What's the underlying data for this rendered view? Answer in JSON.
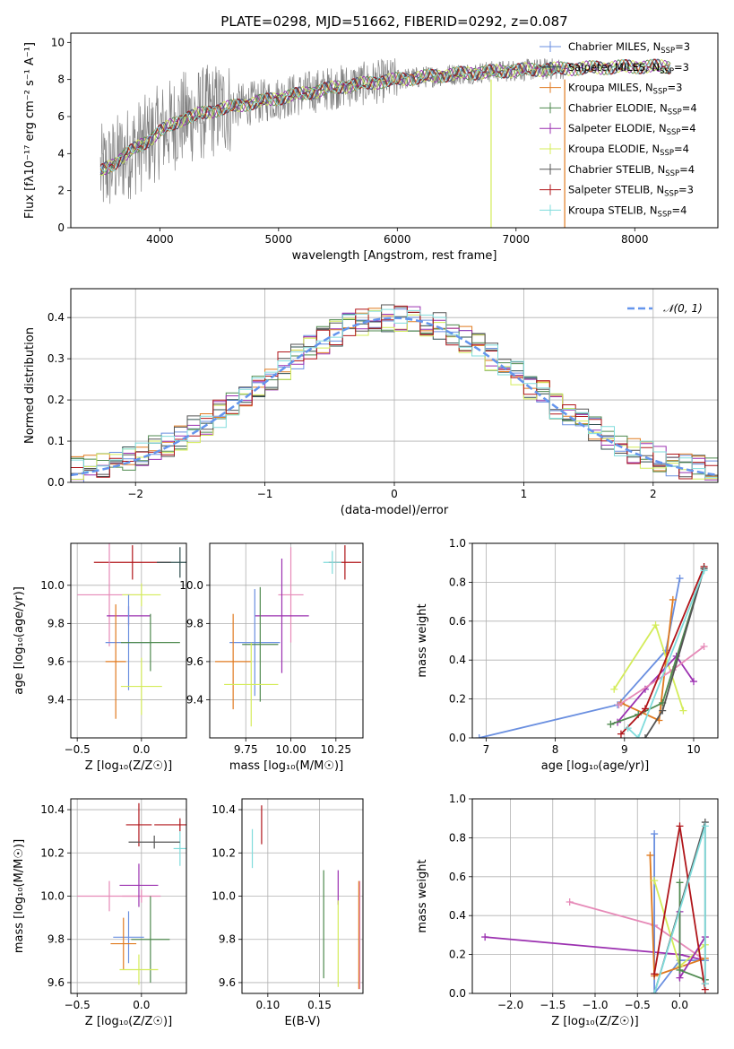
{
  "figure_title": "PLATE=0298, MJD=51662, FIBERID=0292, z=0.087",
  "colors": {
    "Chabrier MILES": "#6a8fe0",
    "Salpeter MILES": "#2f4f4f",
    "Kroupa MILES": "#e07a1f",
    "Chabrier ELODIE": "#4f8a4f",
    "Salpeter ELODIE": "#9b30b0",
    "Kroupa ELODIE": "#d4ec5a",
    "Chabrier STELIB": "#555555",
    "Salpeter STELIB": "#b0151a",
    "Kroupa STELIB": "#80dcdc",
    "Pink": "#e68ab8",
    "Data": "#808080",
    "Gauss": "#6495ed"
  },
  "chart_data": [
    {
      "id": "spectrum",
      "type": "line",
      "title": "PLATE=0298, MJD=51662, FIBERID=0292, z=0.087",
      "xlabel": "wavelength [Angstrom, rest frame]",
      "ylabel": "Flux [fλ10⁻¹⁷ erg cm⁻² s⁻¹ A⁻¹]",
      "xlim": [
        3250,
        8700
      ],
      "ylim": [
        0,
        10.5
      ],
      "xticks": [
        4000,
        5000,
        6000,
        7000,
        8000
      ],
      "yticks": [
        0,
        2,
        4,
        6,
        8,
        10
      ],
      "grid": false,
      "legend_position": "right",
      "legend": [
        {
          "label": "Chabrier MILES, N_SSP=3",
          "text": "Chabrier MILES, N",
          "sub": "SSP",
          "tail": "=3",
          "color_key": "Chabrier MILES"
        },
        {
          "label": "Salpeter MILES, N_SSP=3",
          "text": "Salpeter MILES, N",
          "sub": "SSP",
          "tail": "=3",
          "color_key": "Salpeter MILES"
        },
        {
          "label": "Kroupa MILES, N_SSP=3",
          "text": "Kroupa MILES, N",
          "sub": "SSP",
          "tail": "=3",
          "color_key": "Kroupa MILES"
        },
        {
          "label": "Chabrier ELODIE, N_SSP=4",
          "text": "Chabrier ELODIE, N",
          "sub": "SSP",
          "tail": "=4",
          "color_key": "Chabrier ELODIE"
        },
        {
          "label": "Salpeter ELODIE, N_SSP=4",
          "text": "Salpeter ELODIE, N",
          "sub": "SSP",
          "tail": "=4",
          "color_key": "Salpeter ELODIE"
        },
        {
          "label": "Kroupa ELODIE, N_SSP=4",
          "text": "Kroupa ELODIE, N",
          "sub": "SSP",
          "tail": "=4",
          "color_key": "Kroupa ELODIE"
        },
        {
          "label": "Chabrier STELIB, N_SSP=4",
          "text": "Chabrier STELIB, N",
          "sub": "SSP",
          "tail": "=4",
          "color_key": "Chabrier STELIB"
        },
        {
          "label": "Salpeter STELIB, N_SSP=3",
          "text": "Salpeter STELIB, N",
          "sub": "SSP",
          "tail": "=3",
          "color_key": "Salpeter STELIB"
        },
        {
          "label": "Kroupa STELIB, N_SSP=4",
          "text": "Kroupa STELIB, N",
          "sub": "SSP",
          "tail": "=4",
          "color_key": "Kroupa STELIB"
        }
      ],
      "data_range": [
        3500,
        7400
      ],
      "model_range": [
        3500,
        8300
      ],
      "continuum": [
        [
          3500,
          3.0
        ],
        [
          3600,
          3.4
        ],
        [
          3700,
          3.9
        ],
        [
          3800,
          4.3
        ],
        [
          3900,
          4.7
        ],
        [
          4000,
          5.2
        ],
        [
          4200,
          5.9
        ],
        [
          4500,
          6.4
        ],
        [
          5000,
          7.0
        ],
        [
          5500,
          7.6
        ],
        [
          6000,
          8.0
        ],
        [
          6500,
          8.3
        ],
        [
          7000,
          8.5
        ],
        [
          7500,
          8.6
        ],
        [
          8000,
          8.7
        ],
        [
          8300,
          8.7
        ]
      ],
      "spikes": [
        {
          "x": 6790,
          "y": 0.0,
          "color_key": "Kroupa ELODIE"
        },
        {
          "x": 7410,
          "y": 0.0,
          "color_key": "Kroupa MILES"
        }
      ]
    },
    {
      "id": "residuals",
      "type": "histogram",
      "xlabel": "(data-model)/error",
      "ylabel": "Normed distribution",
      "xlim": [
        -2.5,
        2.5
      ],
      "ylim": [
        0,
        0.47
      ],
      "xticks": [
        -2,
        -1,
        0,
        1,
        2
      ],
      "yticks": [
        0.0,
        0.1,
        0.2,
        0.3,
        0.4
      ],
      "grid": true,
      "legend_position": "top-right",
      "gauss_label": "𝒩(0, 1)",
      "bins": 50
    },
    {
      "id": "age_vs_Z",
      "type": "scatter",
      "xlabel": "Z [log₁₀(Z/Z☉)]",
      "ylabel": "age  [log₁₀(age/yr)]",
      "xlim": [
        -0.55,
        0.35
      ],
      "ylim": [
        9.2,
        10.22
      ],
      "xticks": [
        -0.5,
        0.0
      ],
      "yticks": [
        9.4,
        9.6,
        9.8,
        10.0
      ],
      "grid": true,
      "points": [
        {
          "x": -0.07,
          "y": 10.12,
          "xerr": 0.3,
          "yerr": 0.09,
          "color_key": "Salpeter STELIB"
        },
        {
          "x": 0.3,
          "y": 10.12,
          "xerr": 0.18,
          "yerr": 0.08,
          "color_key": "Salpeter MILES"
        },
        {
          "x": -0.25,
          "y": 9.95,
          "xerr": 0.25,
          "yerr": 0.27,
          "color_key": "Pink"
        },
        {
          "x": 0.0,
          "y": 9.95,
          "xerr": 0.15,
          "yerr": 0.06,
          "color_key": "Kroupa ELODIE"
        },
        {
          "x": -0.1,
          "y": 9.84,
          "xerr": 0.17,
          "yerr": 0.05,
          "color_key": "Salpeter ELODIE"
        },
        {
          "x": -0.1,
          "y": 9.7,
          "xerr": 0.18,
          "yerr": 0.25,
          "color_key": "Chabrier MILES"
        },
        {
          "x": 0.07,
          "y": 9.7,
          "xerr": 0.23,
          "yerr": 0.15,
          "color_key": "Chabrier ELODIE"
        },
        {
          "x": -0.2,
          "y": 9.6,
          "xerr": 0.08,
          "yerr": 0.3,
          "color_key": "Kroupa MILES"
        },
        {
          "x": 0.0,
          "y": 9.47,
          "xerr": 0.16,
          "yerr": 0.15,
          "color_key": "Kroupa ELODIE"
        }
      ]
    },
    {
      "id": "age_vs_mass",
      "type": "scatter",
      "xlabel": "mass [log₁₀(M/M☉)]",
      "ylabel": "",
      "xlim": [
        9.55,
        10.4
      ],
      "ylim": [
        9.2,
        10.22
      ],
      "xticks": [
        9.75,
        10.0,
        10.25
      ],
      "xticklabels": [
        "9.75",
        "10.00",
        "10.25"
      ],
      "yticks": [
        9.4,
        9.6,
        9.8,
        10.0
      ],
      "grid": true,
      "points": [
        {
          "x": 10.3,
          "y": 10.12,
          "xerr": 0.09,
          "yerr": 0.09,
          "color_key": "Salpeter STELIB"
        },
        {
          "x": 10.23,
          "y": 10.12,
          "xerr": 0.05,
          "yerr": 0.06,
          "color_key": "Kroupa STELIB"
        },
        {
          "x": 10.0,
          "y": 9.95,
          "xerr": 0.07,
          "yerr": 0.25,
          "color_key": "Pink"
        },
        {
          "x": 9.95,
          "y": 9.84,
          "xerr": 0.15,
          "yerr": 0.3,
          "color_key": "Salpeter ELODIE"
        },
        {
          "x": 9.8,
          "y": 9.7,
          "xerr": 0.14,
          "yerr": 0.28,
          "color_key": "Chabrier MILES"
        },
        {
          "x": 9.83,
          "y": 9.69,
          "xerr": 0.1,
          "yerr": 0.3,
          "color_key": "Chabrier ELODIE"
        },
        {
          "x": 9.68,
          "y": 9.6,
          "xerr": 0.1,
          "yerr": 0.25,
          "color_key": "Kroupa MILES"
        },
        {
          "x": 9.78,
          "y": 9.48,
          "xerr": 0.15,
          "yerr": 0.22,
          "color_key": "Kroupa ELODIE"
        }
      ]
    },
    {
      "id": "weight_vs_age",
      "type": "line",
      "xlabel": "age  [log₁₀(age/yr)]",
      "ylabel": "mass weight",
      "xlim": [
        6.8,
        10.35
      ],
      "ylim": [
        0,
        1.0
      ],
      "xticks": [
        7,
        8,
        9,
        10
      ],
      "yticks": [
        0.0,
        0.2,
        0.4,
        0.6,
        0.8,
        1.0
      ],
      "grid": true,
      "series": [
        {
          "color_key": "Chabrier MILES",
          "x": [
            6.9,
            8.9,
            9.6,
            9.8
          ],
          "y": [
            0.0,
            0.17,
            0.45,
            0.82
          ]
        },
        {
          "color_key": "Kroupa MILES",
          "x": [
            8.95,
            9.5,
            9.7
          ],
          "y": [
            0.18,
            0.09,
            0.71
          ]
        },
        {
          "color_key": "Kroupa ELODIE",
          "x": [
            8.85,
            9.45,
            9.85
          ],
          "y": [
            0.25,
            0.58,
            0.14
          ]
        },
        {
          "color_key": "Salpeter ELODIE",
          "x": [
            8.9,
            9.3,
            9.75,
            10.0
          ],
          "y": [
            0.08,
            0.25,
            0.42,
            0.29
          ]
        },
        {
          "color_key": "Pink",
          "x": [
            8.92,
            9.7,
            10.15
          ],
          "y": [
            0.17,
            0.35,
            0.47
          ]
        },
        {
          "color_key": "Chabrier ELODIE",
          "x": [
            8.8,
            9.2,
            9.55,
            10.15
          ],
          "y": [
            0.07,
            0.12,
            0.18,
            0.87
          ]
        },
        {
          "color_key": "Salpeter STELIB",
          "x": [
            8.95,
            9.3,
            10.15
          ],
          "y": [
            0.02,
            0.15,
            0.88
          ]
        },
        {
          "color_key": "Chabrier STELIB",
          "x": [
            9.3,
            9.55,
            10.15
          ],
          "y": [
            0.0,
            0.14,
            0.87
          ]
        },
        {
          "color_key": "Kroupa STELIB",
          "x": [
            9.05,
            9.2,
            10.15
          ],
          "y": [
            0.05,
            0.0,
            0.86
          ]
        }
      ]
    },
    {
      "id": "mass_vs_Z",
      "type": "scatter",
      "xlabel": "Z [log₁₀(Z/Z☉)]",
      "ylabel": "mass [log₁₀(M/M☉)]",
      "xlim": [
        -0.55,
        0.35
      ],
      "ylim": [
        9.55,
        10.45
      ],
      "xticks": [
        -0.5,
        0.0
      ],
      "yticks": [
        9.6,
        9.8,
        10.0,
        10.2,
        10.4
      ],
      "grid": true,
      "points": [
        {
          "x": -0.02,
          "y": 10.33,
          "xerr": 0.1,
          "yerr": 0.1,
          "color_key": "Salpeter STELIB"
        },
        {
          "x": 0.3,
          "y": 10.33,
          "xerr": 0.2,
          "yerr": 0.03,
          "color_key": "Salpeter STELIB"
        },
        {
          "x": 0.3,
          "y": 10.22,
          "xerr": 0.05,
          "yerr": 0.08,
          "color_key": "Kroupa STELIB"
        },
        {
          "x": 0.1,
          "y": 10.25,
          "xerr": 0.2,
          "yerr": 0.03,
          "color_key": "Chabrier STELIB"
        },
        {
          "x": -0.25,
          "y": 10.0,
          "xerr": 0.25,
          "yerr": 0.07,
          "color_key": "Pink"
        },
        {
          "x": 0.0,
          "y": 10.0,
          "xerr": 0.15,
          "yerr": 0.03,
          "color_key": "Pink"
        },
        {
          "x": -0.02,
          "y": 10.05,
          "xerr": 0.15,
          "yerr": 0.1,
          "color_key": "Salpeter ELODIE"
        },
        {
          "x": 0.07,
          "y": 9.8,
          "xerr": 0.15,
          "yerr": 0.2,
          "color_key": "Chabrier ELODIE"
        },
        {
          "x": -0.1,
          "y": 9.81,
          "xerr": 0.12,
          "yerr": 0.12,
          "color_key": "Chabrier MILES"
        },
        {
          "x": -0.14,
          "y": 9.78,
          "xerr": 0.1,
          "yerr": 0.12,
          "color_key": "Kroupa MILES"
        },
        {
          "x": -0.02,
          "y": 9.66,
          "xerr": 0.15,
          "yerr": 0.07,
          "color_key": "Kroupa ELODIE"
        }
      ]
    },
    {
      "id": "mass_vs_ebv",
      "type": "scatter",
      "xlabel": "E(B-V)",
      "ylabel": "",
      "xlim": [
        0.075,
        0.192
      ],
      "ylim": [
        9.55,
        10.45
      ],
      "xticks": [
        0.1,
        0.15
      ],
      "xticklabels": [
        "0.10",
        "0.15"
      ],
      "yticks": [
        9.6,
        9.8,
        10.0,
        10.2,
        10.4
      ],
      "grid": true,
      "points": [
        {
          "x": 0.085,
          "y": 10.22,
          "xerr": 0.0,
          "yerr": 0.09,
          "color_key": "Kroupa STELIB"
        },
        {
          "x": 0.094,
          "y": 10.33,
          "xerr": 0.0,
          "yerr": 0.09,
          "color_key": "Salpeter STELIB"
        },
        {
          "x": 0.154,
          "y": 9.87,
          "xerr": 0.0,
          "yerr": 0.25,
          "color_key": "Chabrier ELODIE"
        },
        {
          "x": 0.168,
          "y": 10.04,
          "xerr": 0.0,
          "yerr": 0.08,
          "color_key": "Salpeter ELODIE"
        },
        {
          "x": 0.168,
          "y": 9.78,
          "xerr": 0.0,
          "yerr": 0.2,
          "color_key": "Kroupa ELODIE"
        },
        {
          "x": 0.188,
          "y": 9.82,
          "xerr": 0.0,
          "yerr": 0.25,
          "color_key": "Kroupa MILES"
        },
        {
          "x": 0.189,
          "y": 9.82,
          "xerr": 0.0,
          "yerr": 0.25,
          "color_key": "Pink"
        }
      ]
    },
    {
      "id": "weight_vs_Z",
      "type": "line",
      "xlabel": "Z [log₁₀(Z/Z☉)]",
      "ylabel": "mass weight",
      "xlim": [
        -2.45,
        0.45
      ],
      "ylim": [
        0,
        1.0
      ],
      "xticks": [
        -2.0,
        -1.5,
        -1.0,
        -0.5,
        0.0
      ],
      "yticks": [
        0.0,
        0.2,
        0.4,
        0.6,
        0.8,
        1.0
      ],
      "grid": true,
      "series": [
        {
          "color_key": "Salpeter ELODIE",
          "x": [
            -2.3,
            0.0,
            0.3
          ],
          "y": [
            0.29,
            0.2,
            0.17
          ]
        },
        {
          "color_key": "Pink",
          "x": [
            -1.3,
            -0.3,
            0.3
          ],
          "y": [
            0.47,
            0.35,
            0.17
          ]
        },
        {
          "color_key": "Chabrier MILES",
          "x": [
            -0.3,
            -0.3,
            0.0,
            0.3
          ],
          "y": [
            0.82,
            0.0,
            0.17,
            0.17
          ]
        },
        {
          "color_key": "Kroupa MILES",
          "x": [
            -0.35,
            -0.3,
            0.3
          ],
          "y": [
            0.71,
            0.09,
            0.18
          ]
        },
        {
          "color_key": "Kroupa ELODIE",
          "x": [
            -0.3,
            0.0,
            0.3
          ],
          "y": [
            0.58,
            0.14,
            0.25
          ]
        },
        {
          "color_key": "Salpeter ELODIE",
          "x": [
            0.0,
            0.0,
            0.3
          ],
          "y": [
            0.42,
            0.08,
            0.29
          ]
        },
        {
          "color_key": "Chabrier ELODIE",
          "x": [
            0.0,
            0.0,
            0.3
          ],
          "y": [
            0.57,
            0.12,
            0.07
          ]
        },
        {
          "color_key": "Salpeter STELIB",
          "x": [
            -0.3,
            0.0,
            0.3
          ],
          "y": [
            0.1,
            0.86,
            0.02
          ]
        },
        {
          "color_key": "Chabrier STELIB",
          "x": [
            -0.3,
            0.3,
            0.3
          ],
          "y": [
            0.0,
            0.88,
            0.05
          ]
        },
        {
          "color_key": "Kroupa STELIB",
          "x": [
            -0.3,
            0.3,
            0.3
          ],
          "y": [
            0.0,
            0.86,
            0.05
          ]
        }
      ]
    }
  ]
}
